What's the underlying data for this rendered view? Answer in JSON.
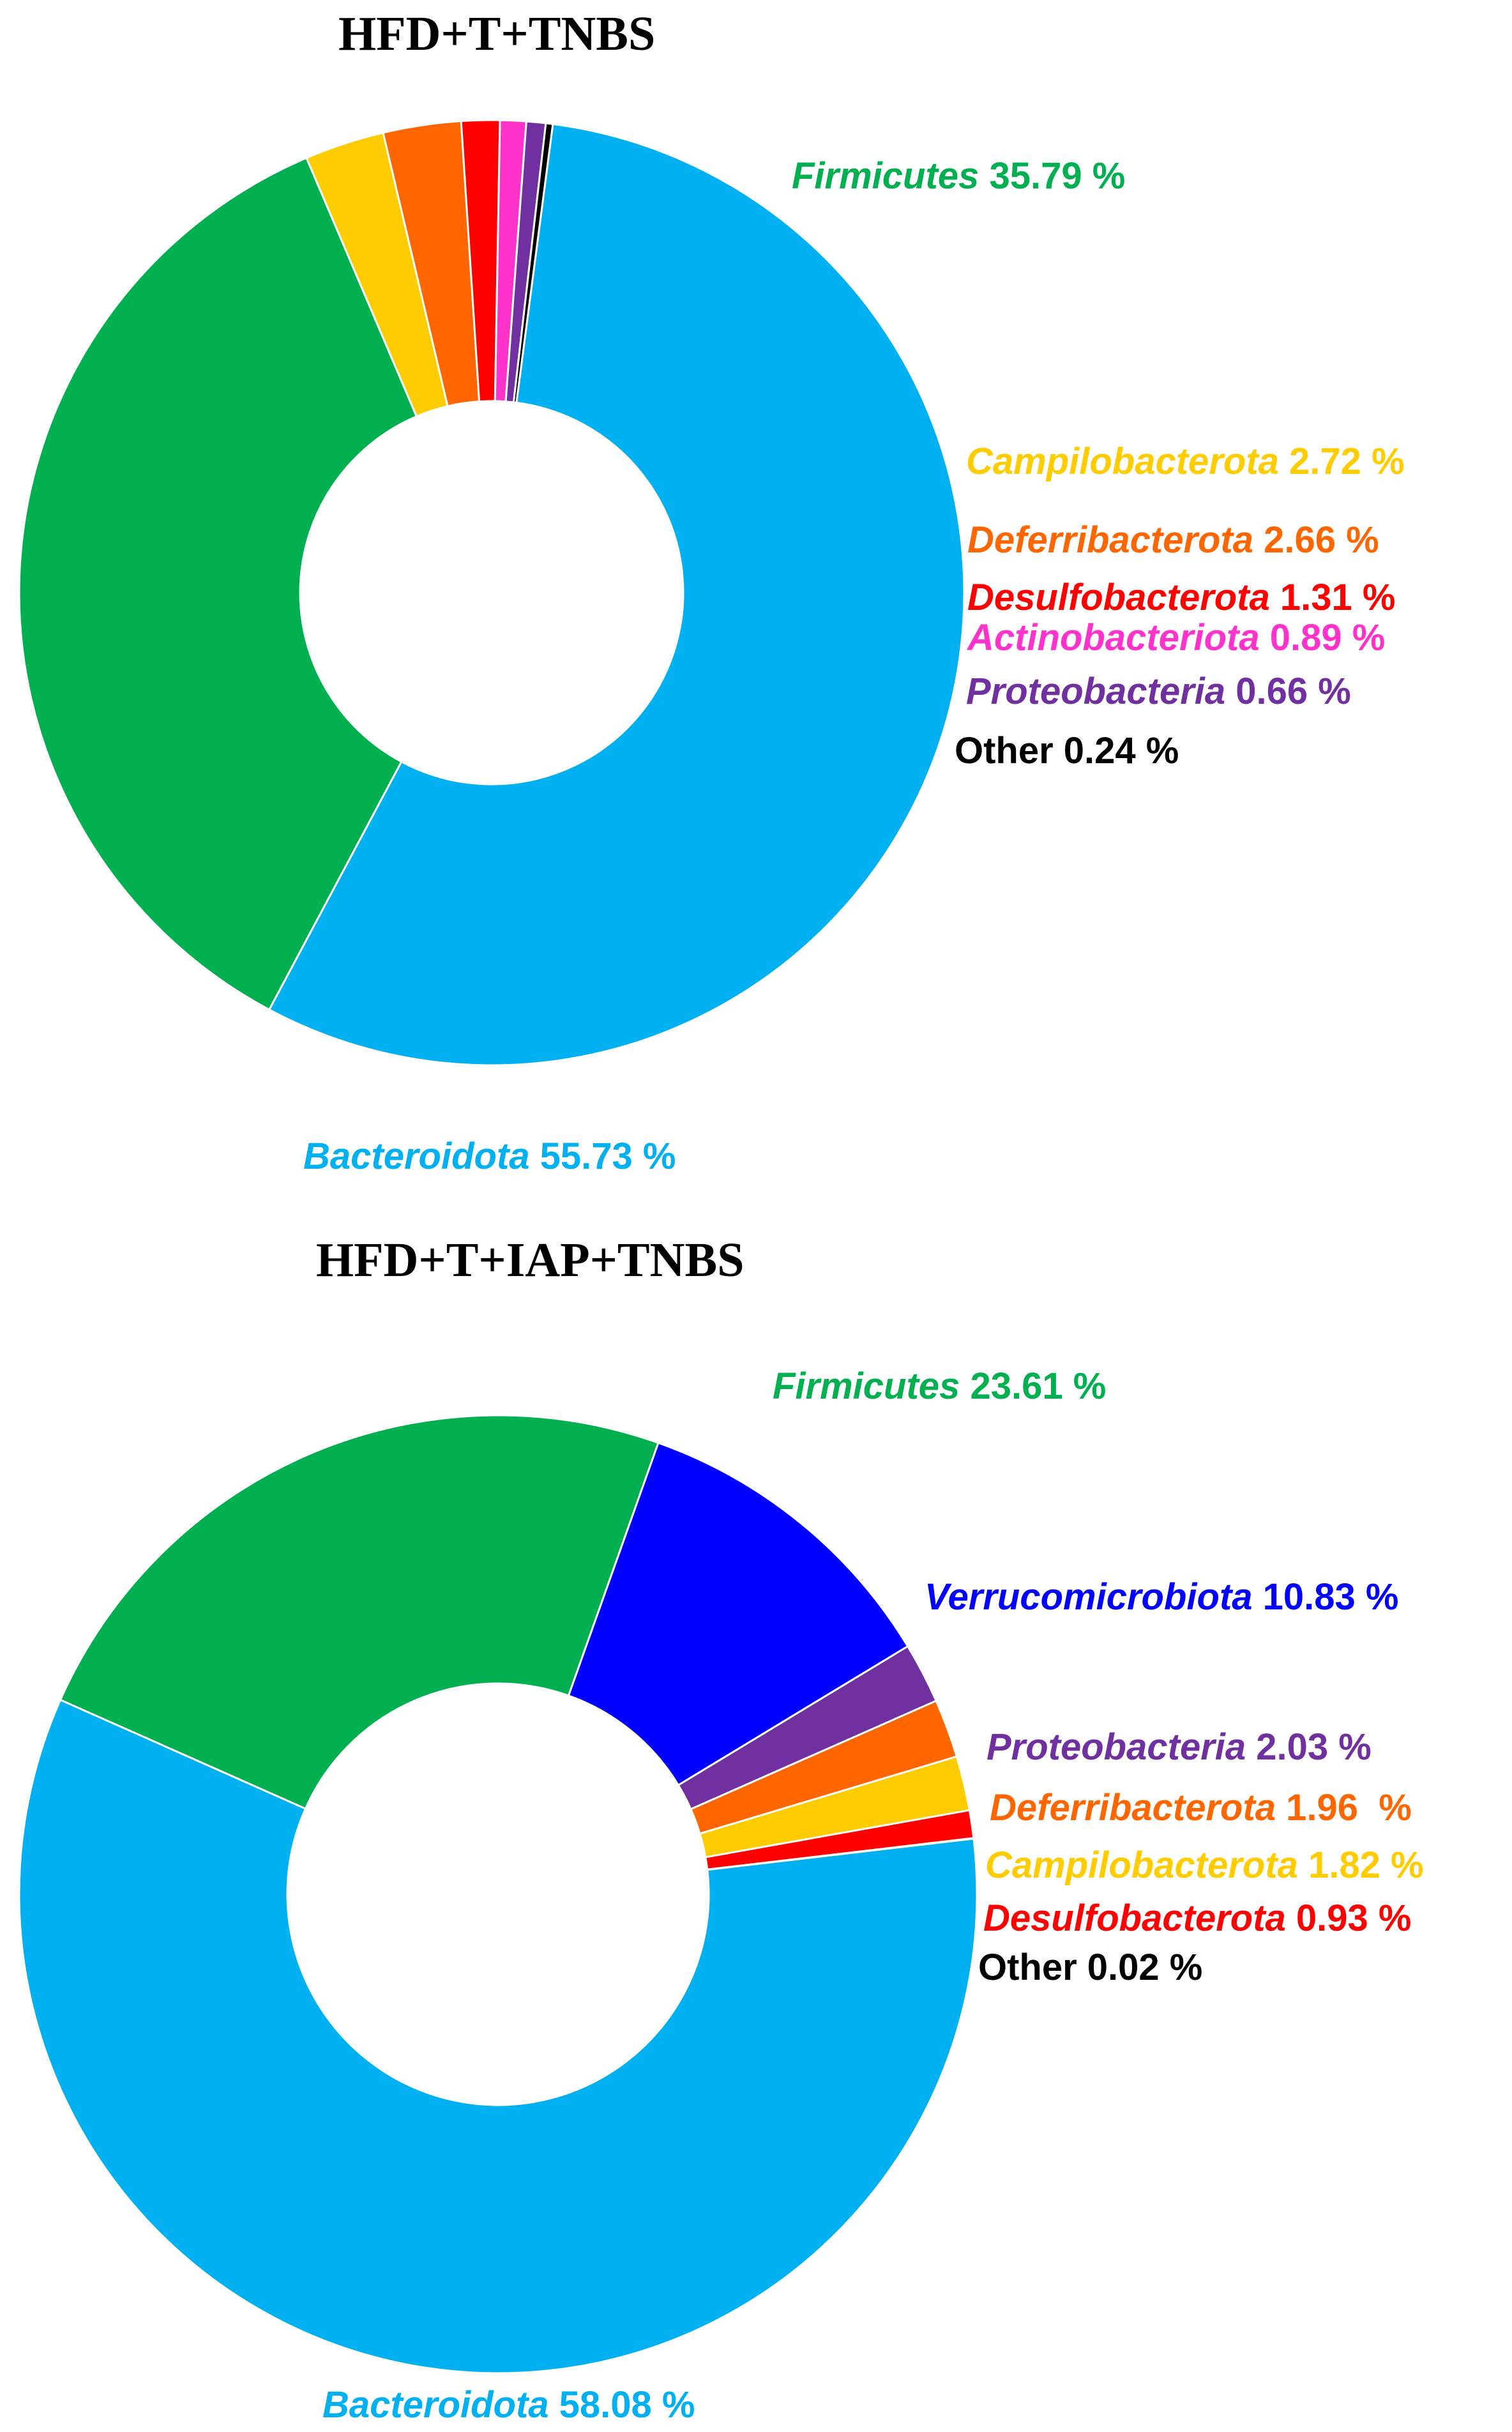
{
  "chart_data": [
    {
      "type": "pie",
      "title": "HFD+T+TNBS",
      "slices": [
        {
          "name": "Firmicutes",
          "value": 35.79,
          "label": "35.79 %",
          "color": "#00B050"
        },
        {
          "name": "Campilobacterota",
          "value": 2.72,
          "label": "2.72 %",
          "color": "#FFCC00"
        },
        {
          "name": "Deferribacterota",
          "value": 2.66,
          "label": "2.66 %",
          "color": "#FF6600"
        },
        {
          "name": "Desulfobacterota",
          "value": 1.31,
          "label": "1.31 %",
          "color": "#FF0000"
        },
        {
          "name": "Actinobacteriota",
          "value": 0.89,
          "label": "0.89 %",
          "color": "#FF33CC"
        },
        {
          "name": "Proteobacteria",
          "value": 0.66,
          "label": "0.66 %",
          "color": "#7030A0"
        },
        {
          "name": "Other",
          "value": 0.24,
          "label": "0.24 %",
          "color": "#000000"
        },
        {
          "name": "Bacteroidota",
          "value": 55.73,
          "label": "55.73 %",
          "color": "#00B0F0"
        }
      ]
    },
    {
      "type": "pie",
      "title": "HFD+T+IAP+TNBS",
      "slices": [
        {
          "name": "Firmicutes",
          "value": 23.61,
          "label": "23.61 %",
          "color": "#00B050"
        },
        {
          "name": "Verrucomicrobiota",
          "value": 10.83,
          "label": "10.83 %",
          "color": "#0000FF"
        },
        {
          "name": "Proteobacteria",
          "value": 2.03,
          "label": "2.03 %",
          "color": "#7030A0"
        },
        {
          "name": "Deferribacterota",
          "value": 1.96,
          "label": "1.96  %",
          "color": "#FF6600"
        },
        {
          "name": "Campilobacterota",
          "value": 1.82,
          "label": "1.82 %",
          "color": "#FFCC00"
        },
        {
          "name": "Desulfobacterota",
          "value": 0.93,
          "label": "0.93 %",
          "color": "#FF0000"
        },
        {
          "name": "Other",
          "value": 0.02,
          "label": "0.02 %",
          "color": "#000000"
        },
        {
          "name": "Bacteroidota",
          "value": 58.08,
          "label": "58.08 %",
          "color": "#00B0F0"
        }
      ]
    }
  ]
}
